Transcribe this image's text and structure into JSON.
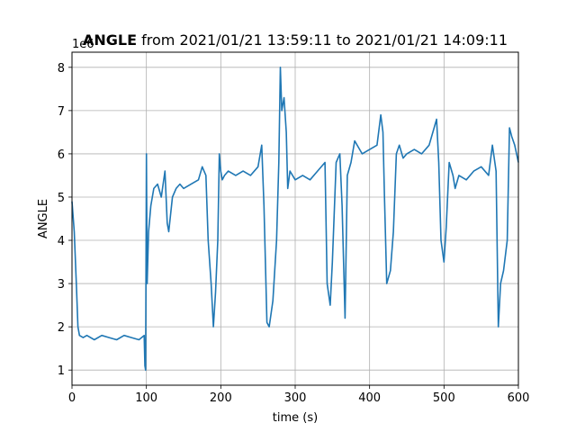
{
  "chart_data": {
    "type": "line",
    "title_bold": "ANGLE",
    "title_rest": " from 2021/01/21 13:59:11 to 2021/01/21 14:09:11",
    "xlabel": "time (s)",
    "ylabel": "ANGLE",
    "y_offset_label": "1e6",
    "xlim": [
      0,
      600
    ],
    "ylim": [
      0.65,
      8.35
    ],
    "xticks": [
      0,
      100,
      200,
      300,
      400,
      500,
      600
    ],
    "yticks": [
      1,
      2,
      3,
      4,
      5,
      6,
      7,
      8
    ],
    "grid": true,
    "line_color": "#1f77b4",
    "series": [
      {
        "x": [
          0,
          3,
          6,
          8,
          10,
          15,
          20,
          30,
          40,
          50,
          60,
          70,
          80,
          90,
          97,
          98,
          99,
          100,
          101,
          103,
          106,
          110,
          115,
          120,
          125,
          128,
          130,
          135,
          140,
          145,
          150,
          160,
          170,
          175,
          180,
          183,
          187,
          190,
          193,
          196,
          198,
          200,
          202,
          205,
          210,
          220,
          230,
          240,
          250,
          255,
          258,
          262,
          265,
          270,
          275,
          278,
          280,
          282,
          285,
          288,
          290,
          293,
          300,
          310,
          320,
          330,
          340,
          343,
          347,
          350,
          355,
          360,
          363,
          367,
          370,
          375,
          380,
          390,
          400,
          410,
          415,
          418,
          420,
          423,
          428,
          432,
          436,
          440,
          445,
          450,
          460,
          470,
          480,
          490,
          493,
          496,
          500,
          503,
          507,
          512,
          515,
          520,
          530,
          540,
          550,
          560,
          565,
          570,
          573,
          576,
          580,
          585,
          588,
          591,
          595,
          600
        ],
        "y": [
          4.9,
          4.2,
          2.9,
          2.0,
          1.8,
          1.75,
          1.8,
          1.7,
          1.8,
          1.75,
          1.7,
          1.8,
          1.75,
          1.7,
          1.8,
          1.1,
          1.0,
          6.0,
          3.0,
          4.2,
          4.8,
          5.2,
          5.3,
          5.0,
          5.6,
          4.4,
          4.2,
          5.0,
          5.2,
          5.3,
          5.2,
          5.3,
          5.4,
          5.7,
          5.5,
          4.0,
          3.0,
          2.0,
          2.8,
          4.0,
          6.0,
          5.6,
          5.4,
          5.5,
          5.6,
          5.5,
          5.6,
          5.5,
          5.7,
          6.2,
          4.8,
          2.1,
          2.0,
          2.6,
          4.0,
          5.8,
          8.0,
          7.0,
          7.3,
          6.5,
          5.2,
          5.6,
          5.4,
          5.5,
          5.4,
          5.6,
          5.8,
          3.0,
          2.5,
          3.5,
          5.8,
          6.0,
          4.8,
          2.2,
          5.5,
          5.8,
          6.3,
          6.0,
          6.1,
          6.2,
          6.9,
          6.5,
          5.0,
          3.0,
          3.3,
          4.2,
          6.0,
          6.2,
          5.9,
          6.0,
          6.1,
          6.0,
          6.2,
          6.8,
          5.8,
          4.0,
          3.5,
          4.3,
          5.8,
          5.5,
          5.2,
          5.5,
          5.4,
          5.6,
          5.7,
          5.5,
          6.2,
          5.6,
          2.0,
          3.0,
          3.3,
          4.0,
          6.6,
          6.4,
          6.2,
          5.8
        ]
      }
    ]
  }
}
